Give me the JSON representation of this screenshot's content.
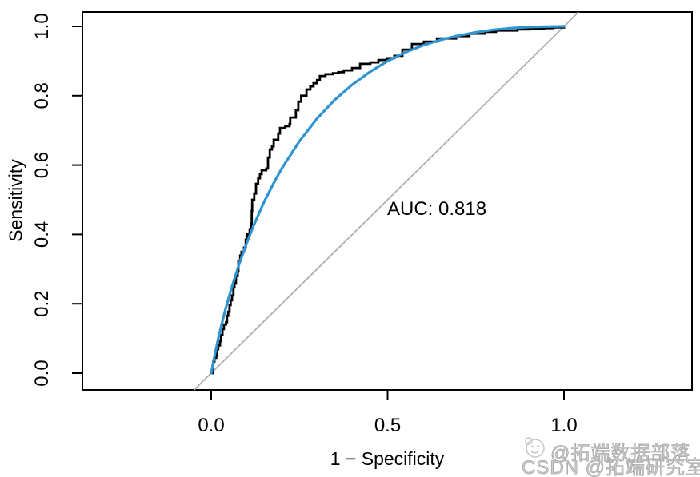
{
  "chart_data": {
    "type": "line",
    "subtype": "roc-curve",
    "title": "",
    "xlabel": "1 − Specificity",
    "ylabel": "Sensitivity",
    "xlim": [
      0,
      1
    ],
    "ylim": [
      0,
      1
    ],
    "grid": false,
    "auc": 0.818,
    "annotation": {
      "label": "AUC: 0.818",
      "x": 0.5,
      "y": 0.45
    },
    "x_ticks": {
      "values": [
        0,
        0.5,
        1
      ],
      "labels": [
        "0.0",
        "0.5",
        "1.0"
      ]
    },
    "y_ticks": {
      "values": [
        0,
        0.2,
        0.4,
        0.6,
        0.8,
        1
      ],
      "labels": [
        "0.0",
        "0.2",
        "0.4",
        "0.6",
        "0.8",
        "1.0"
      ]
    },
    "series": [
      {
        "name": "empirical-roc",
        "style": "step",
        "color": "#000000",
        "line_width": 2.8,
        "points": [
          [
            0,
            0
          ],
          [
            0.004,
            0.02
          ],
          [
            0.006,
            0.033
          ],
          [
            0.009,
            0.044
          ],
          [
            0.014,
            0.05
          ],
          [
            0.016,
            0.069
          ],
          [
            0.02,
            0.08
          ],
          [
            0.025,
            0.092
          ],
          [
            0.028,
            0.11
          ],
          [
            0.032,
            0.127
          ],
          [
            0.036,
            0.14
          ],
          [
            0.042,
            0.147
          ],
          [
            0.045,
            0.165
          ],
          [
            0.048,
            0.177
          ],
          [
            0.052,
            0.196
          ],
          [
            0.055,
            0.21
          ],
          [
            0.059,
            0.224
          ],
          [
            0.063,
            0.247
          ],
          [
            0.066,
            0.258
          ],
          [
            0.07,
            0.28
          ],
          [
            0.075,
            0.293
          ],
          [
            0.077,
            0.323
          ],
          [
            0.082,
            0.339
          ],
          [
            0.086,
            0.35
          ],
          [
            0.093,
            0.362
          ],
          [
            0.098,
            0.385
          ],
          [
            0.103,
            0.4
          ],
          [
            0.109,
            0.415
          ],
          [
            0.113,
            0.431
          ],
          [
            0.115,
            0.468
          ],
          [
            0.116,
            0.5
          ],
          [
            0.122,
            0.518
          ],
          [
            0.127,
            0.546
          ],
          [
            0.133,
            0.562
          ],
          [
            0.138,
            0.574
          ],
          [
            0.143,
            0.585
          ],
          [
            0.156,
            0.59
          ],
          [
            0.161,
            0.622
          ],
          [
            0.166,
            0.645
          ],
          [
            0.172,
            0.654
          ],
          [
            0.177,
            0.673
          ],
          [
            0.19,
            0.691
          ],
          [
            0.195,
            0.707
          ],
          [
            0.21,
            0.712
          ],
          [
            0.222,
            0.719
          ],
          [
            0.224,
            0.737
          ],
          [
            0.24,
            0.758
          ],
          [
            0.247,
            0.783
          ],
          [
            0.255,
            0.8
          ],
          [
            0.27,
            0.818
          ],
          [
            0.281,
            0.827
          ],
          [
            0.29,
            0.836
          ],
          [
            0.3,
            0.845
          ],
          [
            0.308,
            0.857
          ],
          [
            0.324,
            0.862
          ],
          [
            0.345,
            0.865
          ],
          [
            0.36,
            0.868
          ],
          [
            0.376,
            0.873
          ],
          [
            0.399,
            0.88
          ],
          [
            0.422,
            0.892
          ],
          [
            0.451,
            0.896
          ],
          [
            0.474,
            0.903
          ],
          [
            0.497,
            0.908
          ],
          [
            0.519,
            0.915
          ],
          [
            0.542,
            0.933
          ],
          [
            0.569,
            0.949
          ],
          [
            0.603,
            0.956
          ],
          [
            0.64,
            0.965
          ],
          [
            0.694,
            0.972
          ],
          [
            0.732,
            0.979
          ],
          [
            0.776,
            0.984
          ],
          [
            0.807,
            0.988
          ],
          [
            0.868,
            0.991
          ],
          [
            0.9,
            0.993
          ],
          [
            0.943,
            0.995
          ],
          [
            0.97,
            0.997
          ],
          [
            1,
            1
          ]
        ]
      },
      {
        "name": "smooth-roc",
        "style": "smooth",
        "color": "#2e93d2",
        "line_width": 3.2,
        "points": [
          [
            0,
            0
          ],
          [
            0.002,
            0.01
          ],
          [
            0.005,
            0.026
          ],
          [
            0.01,
            0.052
          ],
          [
            0.02,
            0.099
          ],
          [
            0.03,
            0.142
          ],
          [
            0.04,
            0.182
          ],
          [
            0.05,
            0.219
          ],
          [
            0.06,
            0.253
          ],
          [
            0.08,
            0.317
          ],
          [
            0.1,
            0.373
          ],
          [
            0.12,
            0.425
          ],
          [
            0.15,
            0.494
          ],
          [
            0.18,
            0.554
          ],
          [
            0.2,
            0.59
          ],
          [
            0.25,
            0.669
          ],
          [
            0.3,
            0.734
          ],
          [
            0.35,
            0.788
          ],
          [
            0.4,
            0.832
          ],
          [
            0.45,
            0.869
          ],
          [
            0.5,
            0.9
          ],
          [
            0.55,
            0.925
          ],
          [
            0.6,
            0.945
          ],
          [
            0.65,
            0.961
          ],
          [
            0.7,
            0.973
          ],
          [
            0.75,
            0.983
          ],
          [
            0.8,
            0.99
          ],
          [
            0.85,
            0.995
          ],
          [
            0.9,
            0.998
          ],
          [
            0.95,
            0.999
          ],
          [
            1,
            1
          ]
        ]
      },
      {
        "name": "chance-line",
        "style": "diagonal",
        "color": "#b0b0b0",
        "line_width": 1.8,
        "points": [
          [
            0,
            0
          ],
          [
            1,
            1
          ]
        ]
      }
    ]
  },
  "watermark": {
    "line1": "@拓端数据部落",
    "line2": "CSDN @拓端研究室",
    "face_icon": "doodle-face-icon",
    "color": "#c6c6c6"
  }
}
